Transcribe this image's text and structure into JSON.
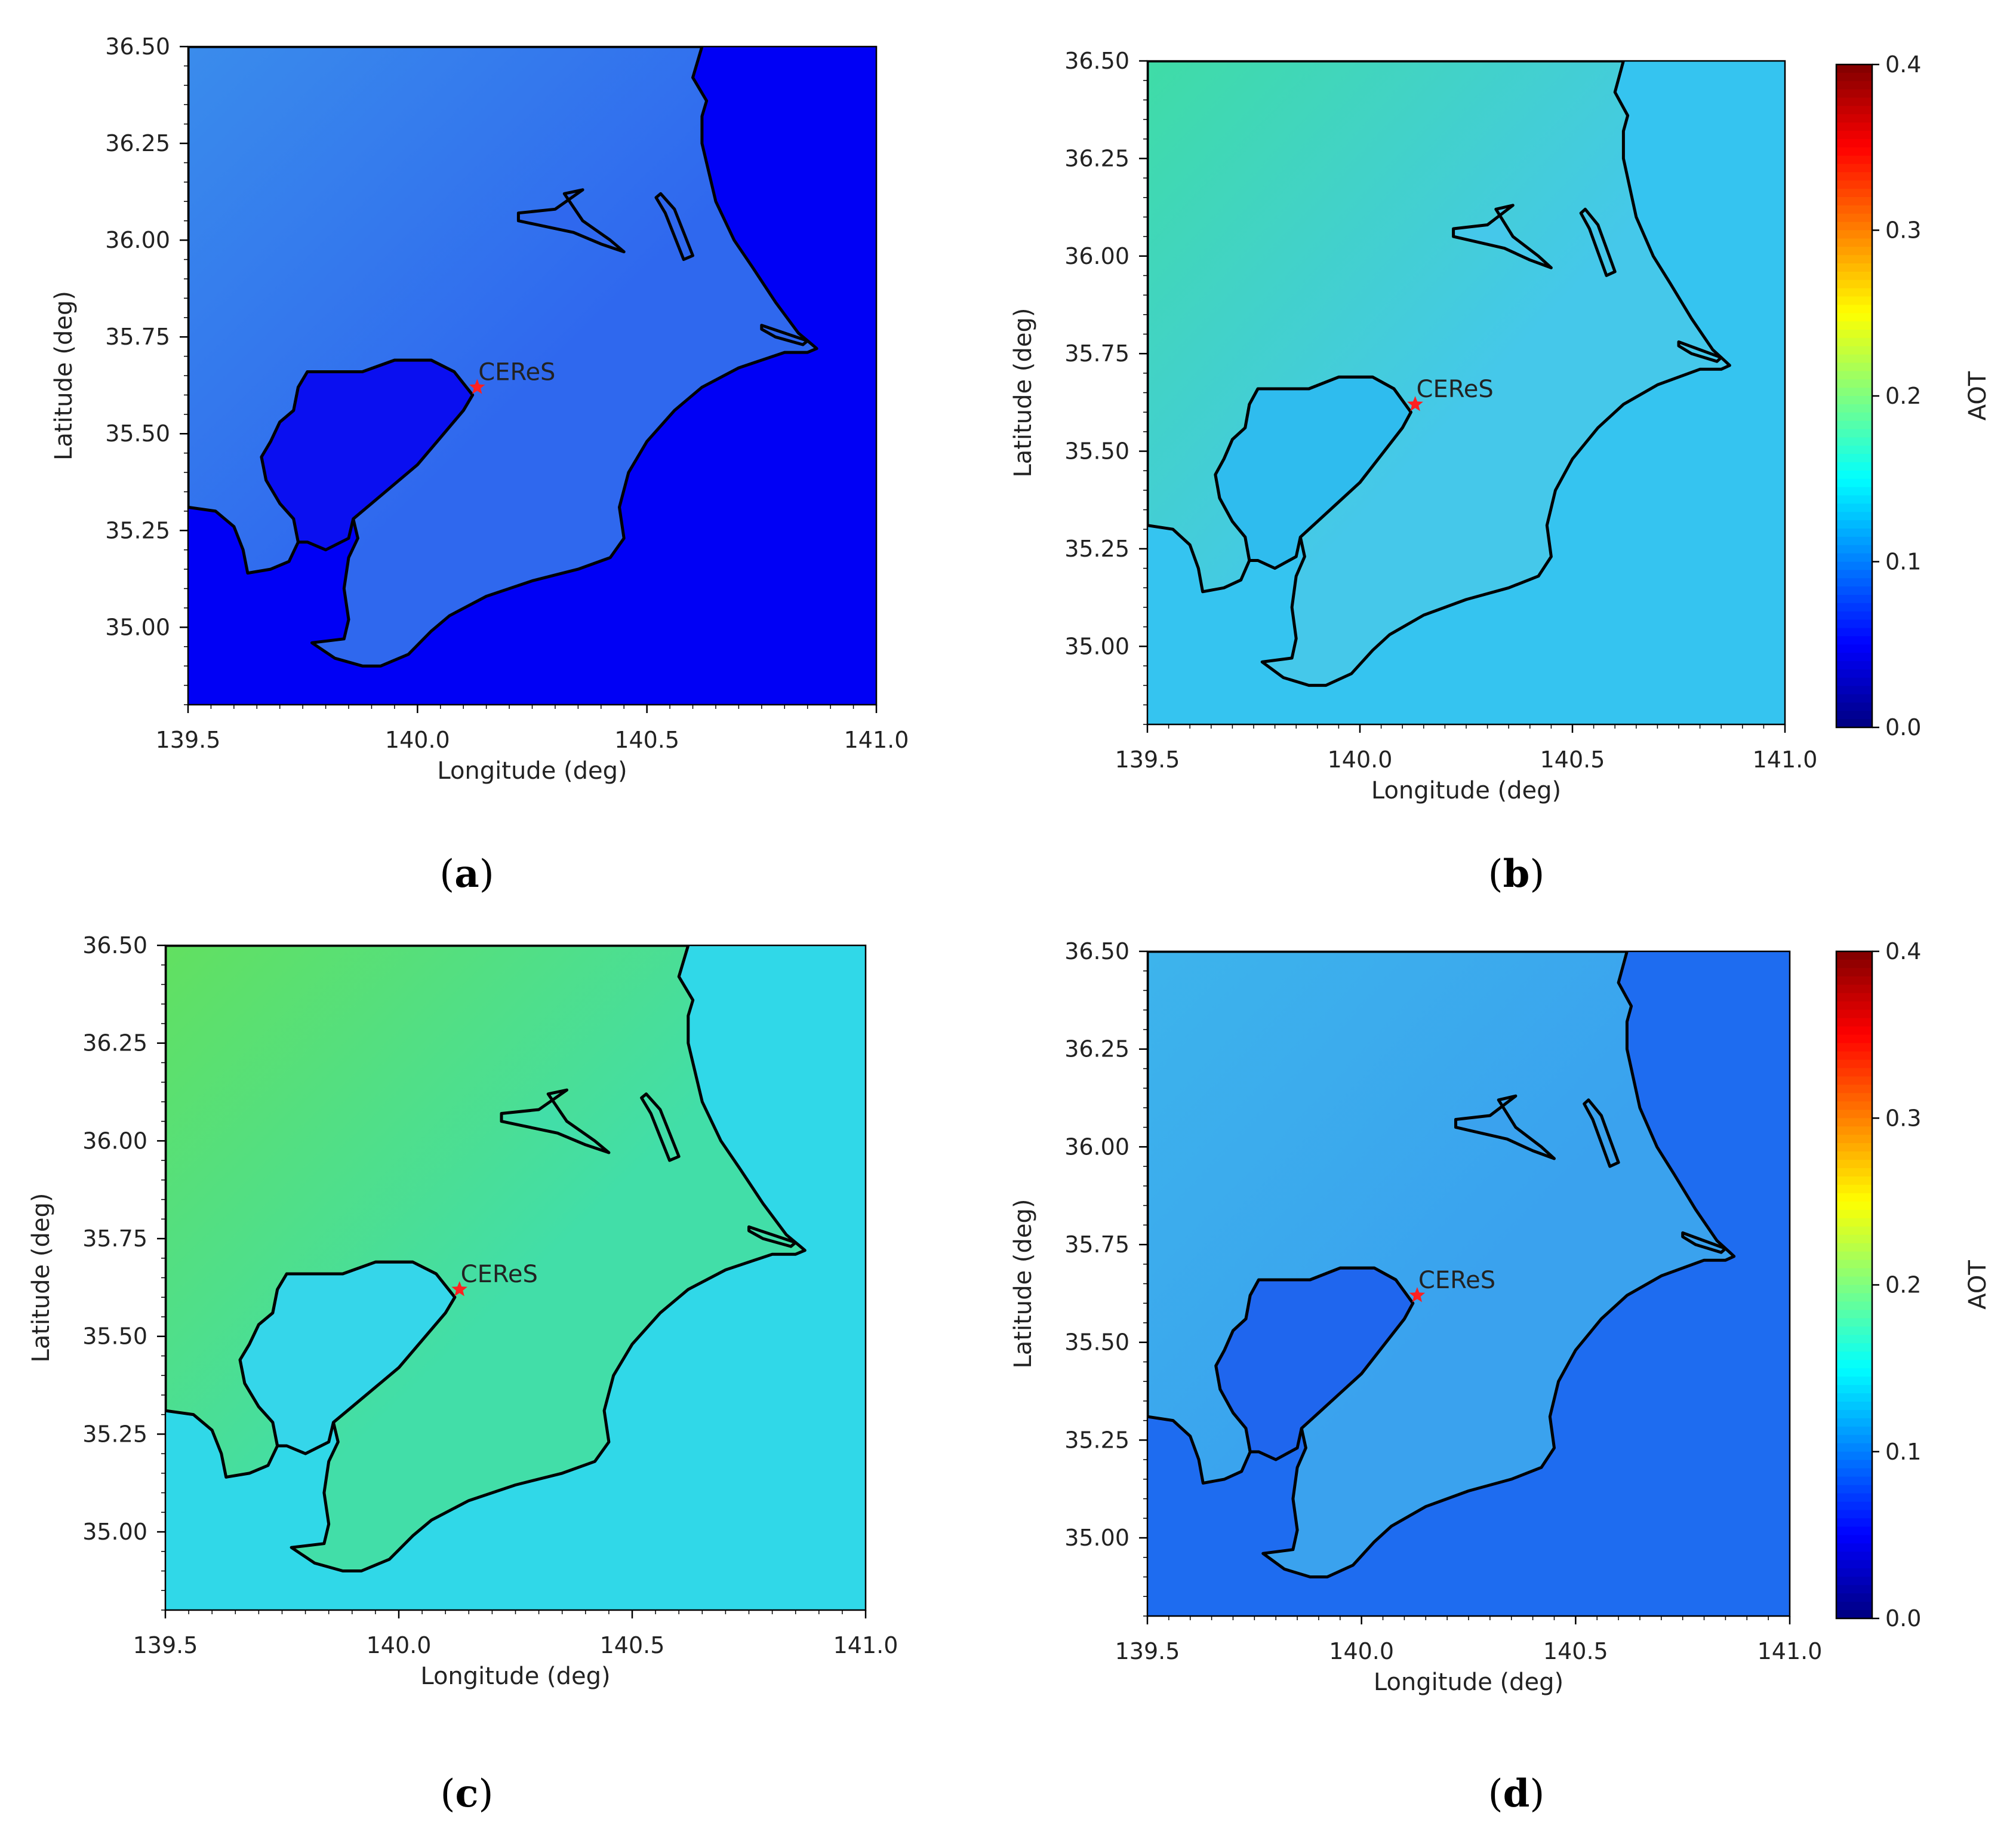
{
  "figure": {
    "xlabel": "Longitude (deg)",
    "ylabel": "Latitude (deg)",
    "site_label": "CEReS",
    "colorbar_label": "AOT",
    "colorbar_ticks": [
      "0.0",
      "0.1",
      "0.2",
      "0.3",
      "0.4"
    ],
    "colormap": "jet",
    "coastline_color": "#000000",
    "site_marker_color": "#ff2020"
  },
  "chart_data": [
    {
      "type": "heatmap",
      "panel": "a",
      "panel_label": "a",
      "xlabel": "Longitude (deg)",
      "ylabel": "Latitude (deg)",
      "xlim": [
        139.5,
        141.0
      ],
      "ylim": [
        34.8,
        36.5
      ],
      "x_ticks": [
        "139.5",
        "140.0",
        "140.5",
        "141.0"
      ],
      "y_ticks": [
        "35.00",
        "35.25",
        "35.50",
        "35.75",
        "36.00",
        "36.25",
        "36.50"
      ],
      "colorbar": false,
      "site": {
        "name": "CEReS",
        "lon": 140.13,
        "lat": 35.62
      },
      "aot": {
        "ocean": 0.06,
        "bay": 0.06,
        "land": 0.1,
        "land_northwest": 0.1
      },
      "colors": {
        "ocean": "#0000f5",
        "bay": "#0a0ff0",
        "land": "#2f68ee",
        "land_northwest": "#3a8cec"
      }
    },
    {
      "type": "heatmap",
      "panel": "b",
      "panel_label": "b",
      "xlabel": "Longitude (deg)",
      "ylabel": "Latitude (deg)",
      "xlim": [
        139.5,
        141.0
      ],
      "ylim": [
        34.8,
        36.5
      ],
      "x_ticks": [
        "139.5",
        "140.0",
        "140.5",
        "141.0"
      ],
      "y_ticks": [
        "35.00",
        "35.25",
        "35.50",
        "35.75",
        "36.00",
        "36.25",
        "36.50"
      ],
      "colorbar": true,
      "colorbar_label": "AOT",
      "colorbar_range": [
        0.0,
        0.4
      ],
      "colorbar_ticks": [
        "0.0",
        "0.1",
        "0.2",
        "0.3",
        "0.4"
      ],
      "site": {
        "name": "CEReS",
        "lon": 140.13,
        "lat": 35.62
      },
      "aot": {
        "ocean": 0.13,
        "bay": 0.13,
        "land": 0.13,
        "land_northwest": 0.17
      },
      "colors": {
        "ocean": "#35c4f0",
        "bay": "#2fbcee",
        "land": "#45c8ea",
        "land_northwest": "#3fdca6"
      }
    },
    {
      "type": "heatmap",
      "panel": "c",
      "panel_label": "c",
      "xlabel": "Longitude (deg)",
      "ylabel": "Latitude (deg)",
      "xlim": [
        139.5,
        141.0
      ],
      "ylim": [
        34.8,
        36.5
      ],
      "x_ticks": [
        "139.5",
        "140.0",
        "140.5",
        "141.0"
      ],
      "y_ticks": [
        "35.00",
        "35.25",
        "35.50",
        "35.75",
        "36.00",
        "36.25",
        "36.50"
      ],
      "colorbar": false,
      "site": {
        "name": "CEReS",
        "lon": 140.13,
        "lat": 35.62
      },
      "aot": {
        "ocean": 0.14,
        "bay": 0.14,
        "land": 0.17,
        "land_northwest": 0.19
      },
      "colors": {
        "ocean": "#30d8e8",
        "bay": "#35d6ea",
        "land": "#42dea8",
        "land_northwest": "#62e060"
      }
    },
    {
      "type": "heatmap",
      "panel": "d",
      "panel_label": "d",
      "xlabel": "Longitude (deg)",
      "ylabel": "Latitude (deg)",
      "xlim": [
        139.5,
        141.0
      ],
      "ylim": [
        34.8,
        36.5
      ],
      "x_ticks": [
        "139.5",
        "140.0",
        "140.5",
        "141.0"
      ],
      "y_ticks": [
        "35.00",
        "35.25",
        "35.50",
        "35.75",
        "36.00",
        "36.25",
        "36.50"
      ],
      "colorbar": true,
      "colorbar_label": "AOT",
      "colorbar_range": [
        0.0,
        0.4
      ],
      "colorbar_ticks": [
        "0.0",
        "0.1",
        "0.2",
        "0.3",
        "0.4"
      ],
      "site": {
        "name": "CEReS",
        "lon": 140.13,
        "lat": 35.62
      },
      "aot": {
        "ocean": 0.09,
        "bay": 0.09,
        "land": 0.11,
        "land_northwest": 0.12
      },
      "colors": {
        "ocean": "#1e6cf0",
        "bay": "#1f66ee",
        "land": "#3aa2ee",
        "land_northwest": "#3db4ec"
      }
    }
  ]
}
